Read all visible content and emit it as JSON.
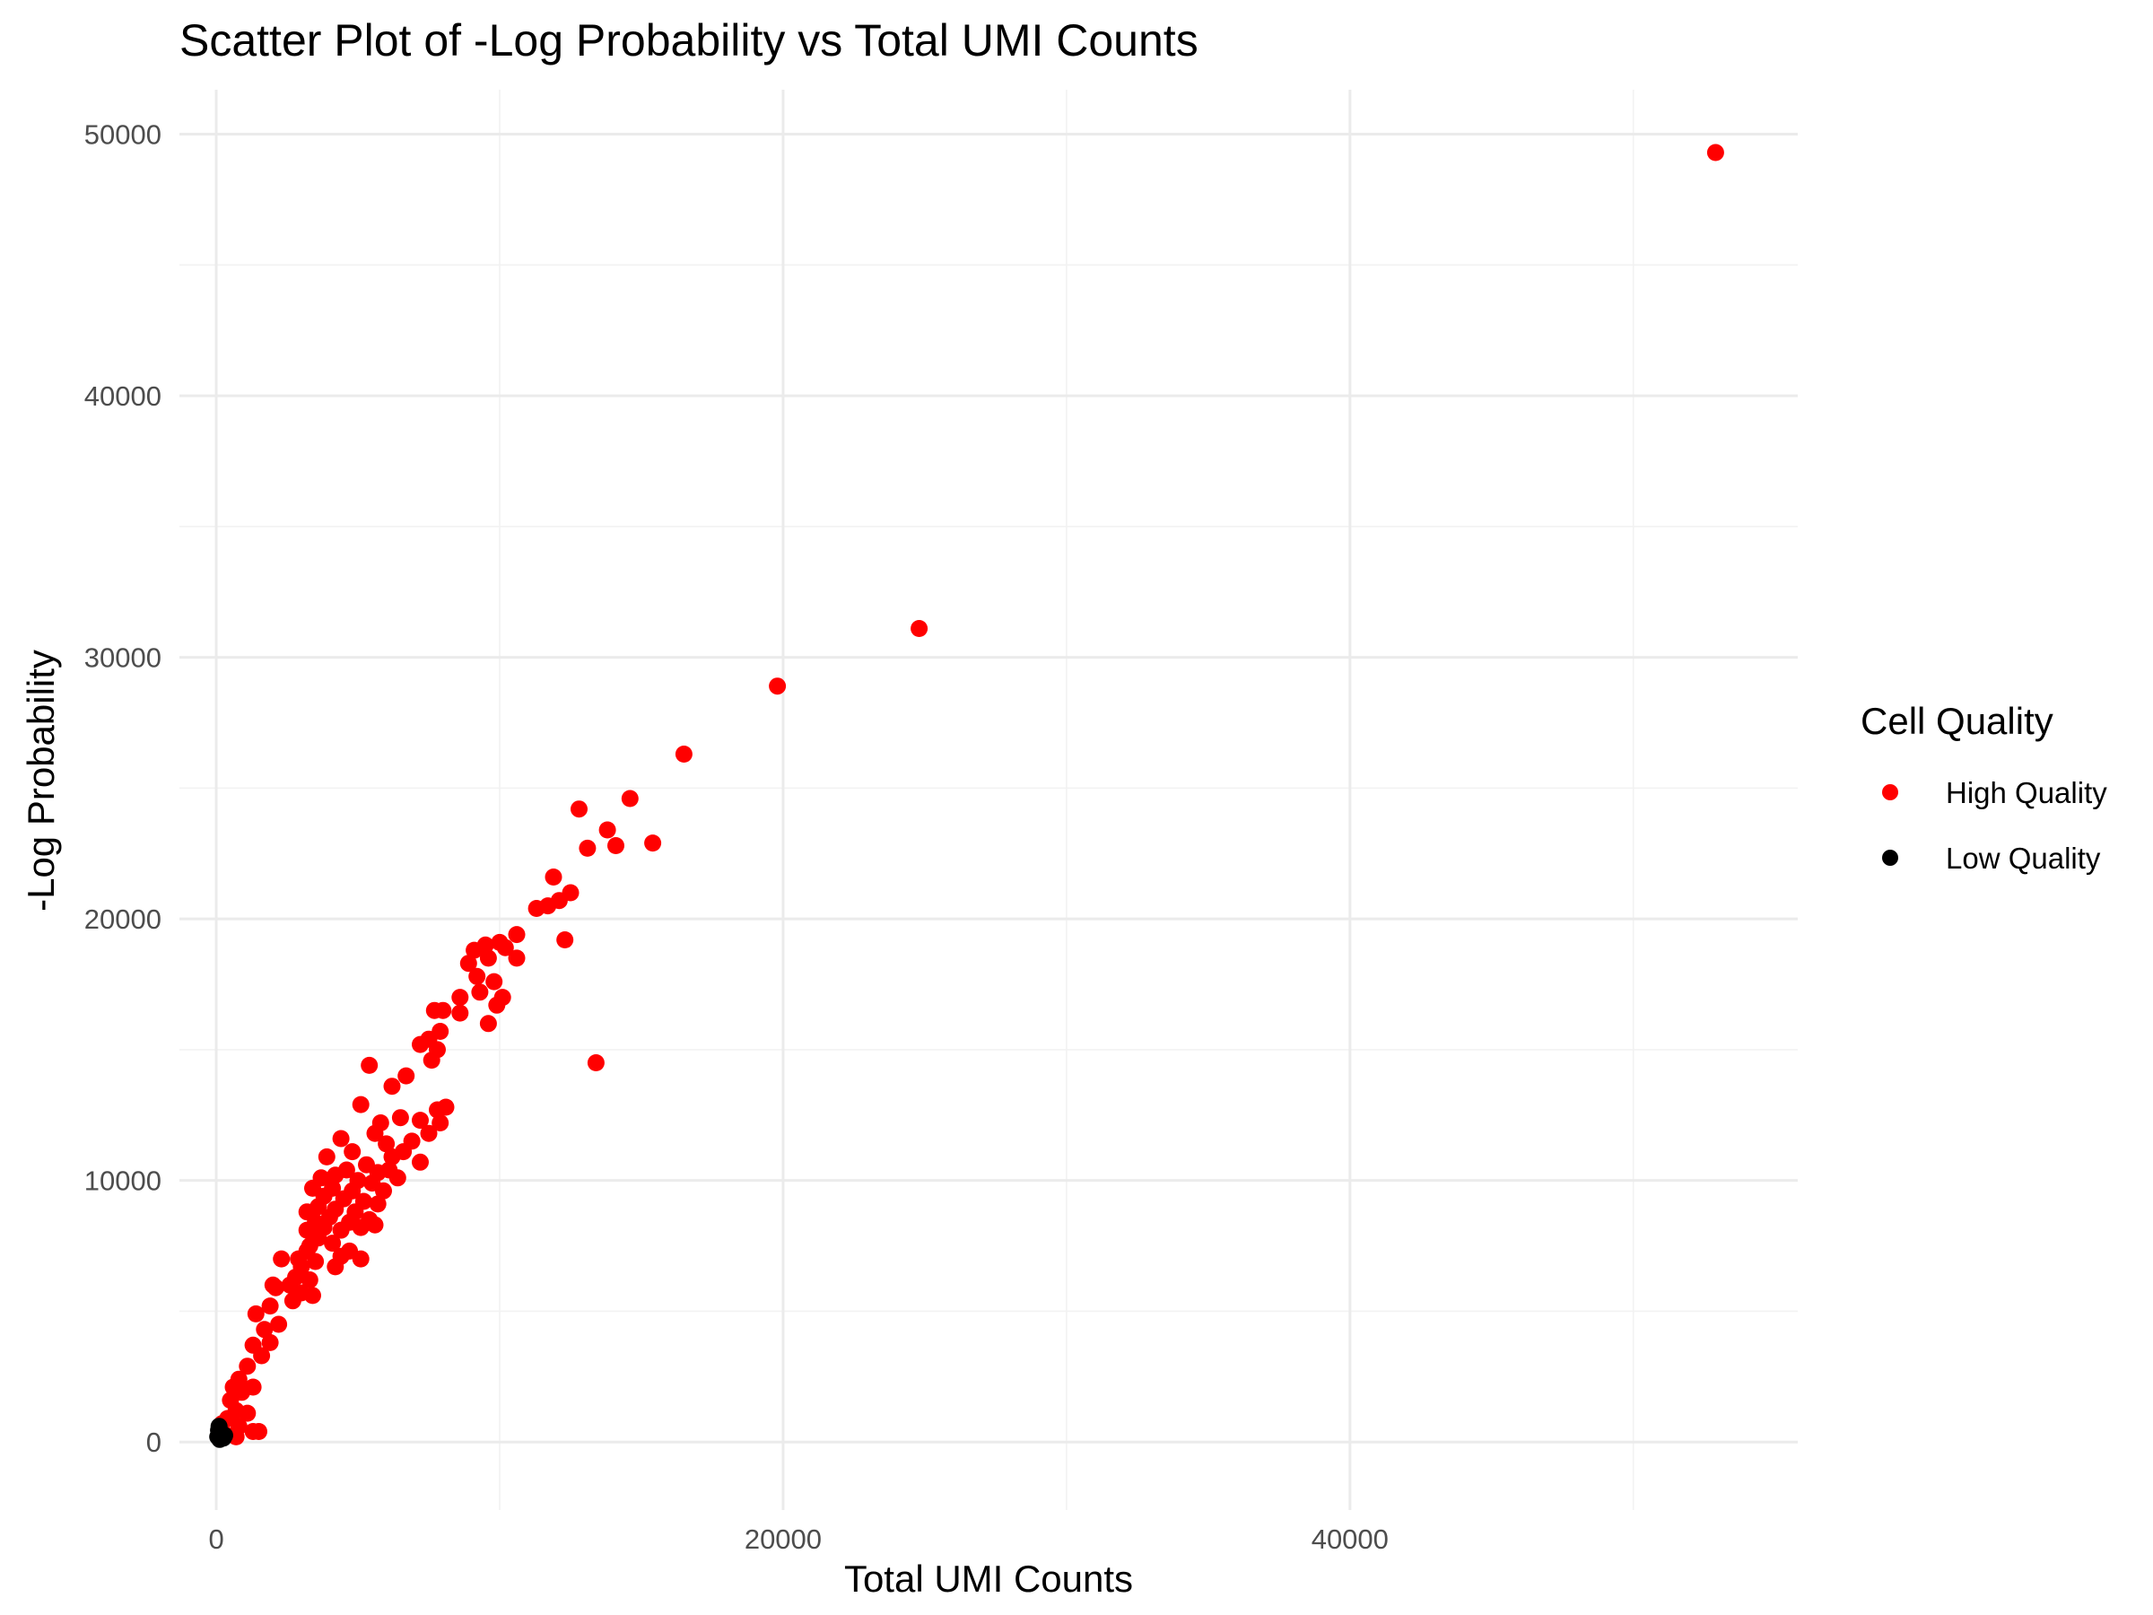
{
  "chart_data": {
    "type": "scatter",
    "title": "Scatter Plot of -Log Probability vs Total UMI Counts",
    "xlabel": "Total UMI Counts",
    "ylabel": "-Log Probability",
    "xlim": [
      -1300,
      55800
    ],
    "ylim": [
      -2600,
      51700
    ],
    "x_ticks": [
      0,
      20000,
      40000
    ],
    "y_ticks": [
      0,
      10000,
      20000,
      30000,
      40000,
      50000
    ],
    "x_tick_labels": [
      "0",
      "20000",
      "40000"
    ],
    "y_tick_labels": [
      "0",
      "10000",
      "20000",
      "30000",
      "40000",
      "50000"
    ],
    "grid": true,
    "legend": {
      "title": "Cell Quality",
      "placement": "right",
      "entries": [
        "High Quality",
        "Low Quality"
      ]
    },
    "series": [
      {
        "name": "High Quality",
        "color": "#ff0000",
        "points": [
          [
            52900,
            49300
          ],
          [
            24800,
            31100
          ],
          [
            19800,
            28900
          ],
          [
            16500,
            26300
          ],
          [
            14600,
            24600
          ],
          [
            12800,
            24200
          ],
          [
            13800,
            23400
          ],
          [
            14100,
            22800
          ],
          [
            15400,
            22900
          ],
          [
            13100,
            22700
          ],
          [
            11900,
            21600
          ],
          [
            12500,
            21000
          ],
          [
            12100,
            20700
          ],
          [
            11700,
            20500
          ],
          [
            11300,
            20400
          ],
          [
            12300,
            19200
          ],
          [
            13400,
            14500
          ],
          [
            10600,
            19400
          ],
          [
            10000,
            19100
          ],
          [
            9500,
            19000
          ],
          [
            9100,
            18800
          ],
          [
            8900,
            18300
          ],
          [
            9600,
            18500
          ],
          [
            10200,
            18900
          ],
          [
            10600,
            18500
          ],
          [
            9200,
            17800
          ],
          [
            9800,
            17600
          ],
          [
            9300,
            17200
          ],
          [
            10100,
            17000
          ],
          [
            8600,
            17000
          ],
          [
            9900,
            16700
          ],
          [
            8000,
            16500
          ],
          [
            7700,
            16500
          ],
          [
            9600,
            16000
          ],
          [
            8600,
            16400
          ],
          [
            7900,
            15700
          ],
          [
            7500,
            15400
          ],
          [
            7200,
            15200
          ],
          [
            7800,
            15000
          ],
          [
            7600,
            14600
          ],
          [
            6700,
            14000
          ],
          [
            5400,
            14400
          ],
          [
            6200,
            13600
          ],
          [
            8100,
            12800
          ],
          [
            7800,
            12700
          ],
          [
            7200,
            12300
          ],
          [
            6500,
            12400
          ],
          [
            7500,
            11800
          ],
          [
            7900,
            12200
          ],
          [
            6900,
            11500
          ],
          [
            5800,
            12200
          ],
          [
            5600,
            11800
          ],
          [
            4400,
            11600
          ],
          [
            5100,
            12900
          ],
          [
            6000,
            11400
          ],
          [
            6600,
            11100
          ],
          [
            6200,
            10900
          ],
          [
            7200,
            10700
          ],
          [
            4800,
            11100
          ],
          [
            3900,
            10900
          ],
          [
            5300,
            10600
          ],
          [
            4600,
            10400
          ],
          [
            6100,
            10400
          ],
          [
            5700,
            10300
          ],
          [
            4200,
            10200
          ],
          [
            3700,
            10100
          ],
          [
            6400,
            10100
          ],
          [
            5000,
            10000
          ],
          [
            5500,
            9900
          ],
          [
            4100,
            9700
          ],
          [
            3400,
            9700
          ],
          [
            4800,
            9600
          ],
          [
            5900,
            9600
          ],
          [
            3800,
            9400
          ],
          [
            4500,
            9300
          ],
          [
            5200,
            9200
          ],
          [
            5700,
            9100
          ],
          [
            3600,
            9000
          ],
          [
            4200,
            8900
          ],
          [
            4900,
            8800
          ],
          [
            3200,
            8800
          ],
          [
            4000,
            8600
          ],
          [
            5400,
            8500
          ],
          [
            3500,
            8400
          ],
          [
            4700,
            8400
          ],
          [
            3800,
            8200
          ],
          [
            5100,
            8200
          ],
          [
            3200,
            8100
          ],
          [
            4400,
            8100
          ],
          [
            5600,
            8300
          ],
          [
            3600,
            7800
          ],
          [
            4100,
            7600
          ],
          [
            3300,
            7500
          ],
          [
            4700,
            7300
          ],
          [
            5100,
            7000
          ],
          [
            3200,
            7300
          ],
          [
            4400,
            7100
          ],
          [
            2900,
            7000
          ],
          [
            3500,
            6900
          ],
          [
            2300,
            7000
          ],
          [
            3000,
            6700
          ],
          [
            4200,
            6700
          ],
          [
            2800,
            6300
          ],
          [
            3300,
            6200
          ],
          [
            2600,
            6000
          ],
          [
            2100,
            5900
          ],
          [
            3000,
            5700
          ],
          [
            2700,
            5400
          ],
          [
            3400,
            5600
          ],
          [
            1900,
            5200
          ],
          [
            1400,
            4900
          ],
          [
            2200,
            4500
          ],
          [
            1700,
            4300
          ],
          [
            1900,
            3800
          ],
          [
            1300,
            3700
          ],
          [
            1600,
            3300
          ],
          [
            1100,
            2900
          ],
          [
            800,
            2400
          ],
          [
            1300,
            2100
          ],
          [
            600,
            2100
          ],
          [
            900,
            1900
          ],
          [
            500,
            1600
          ],
          [
            700,
            1200
          ],
          [
            1100,
            1100
          ],
          [
            400,
            900
          ],
          [
            200,
            700
          ],
          [
            800,
            600
          ],
          [
            1500,
            400
          ],
          [
            1300,
            400
          ],
          [
            300,
            300
          ],
          [
            700,
            200
          ],
          [
            2000,
            6000
          ]
        ]
      },
      {
        "name": "Low Quality",
        "color": "#000000",
        "points": [
          [
            100,
            600
          ],
          [
            150,
            400
          ],
          [
            200,
            300
          ],
          [
            50,
            200
          ],
          [
            250,
            150
          ],
          [
            120,
            100
          ],
          [
            300,
            250
          ],
          [
            80,
            450
          ]
        ]
      }
    ]
  }
}
